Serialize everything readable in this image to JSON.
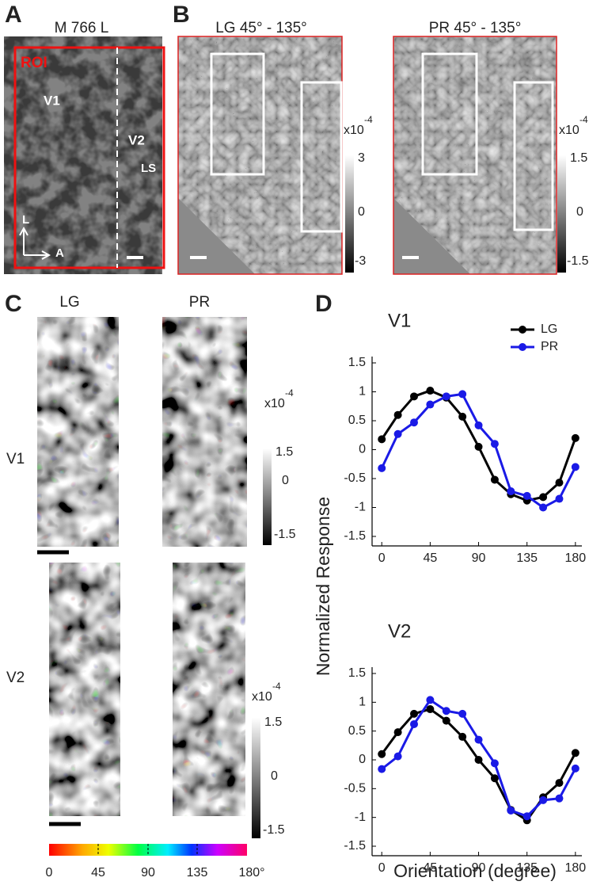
{
  "panel_labels": [
    "A",
    "B",
    "C",
    "D"
  ],
  "panel_a": {
    "title": "M 766 L",
    "roi": "ROI",
    "areas": [
      "V1",
      "V2",
      "LS"
    ],
    "axes": [
      "L",
      "A"
    ]
  },
  "panel_b": {
    "maps": [
      {
        "title": "LG 45° - 135°",
        "scale": "x10",
        "power": "-4",
        "ticks": [
          "3",
          "0",
          "-3"
        ]
      },
      {
        "title": "PR 45° - 135°",
        "scale": "x10",
        "power": "-4",
        "ticks": [
          "1.5",
          "0",
          "-1.5"
        ]
      }
    ]
  },
  "panel_c": {
    "columns": [
      "LG",
      "PR"
    ],
    "rows": [
      "V1",
      "V2"
    ],
    "colorbars": [
      {
        "scale": "x10",
        "power": "-4",
        "ticks": [
          "1.5",
          "0",
          "-1.5"
        ]
      },
      {
        "scale": "x10",
        "power": "-4",
        "ticks": [
          "1.5",
          "0",
          "-1.5"
        ]
      }
    ],
    "orientation_ticks": [
      "0",
      "45",
      "90",
      "135",
      "180°"
    ]
  },
  "chart_data": [
    {
      "type": "line",
      "title": "V1",
      "y_label": "Normalized Response",
      "x": [
        0,
        15,
        30,
        45,
        60,
        75,
        90,
        105,
        120,
        135,
        150,
        165,
        180
      ],
      "series": [
        {
          "name": "LG",
          "color": "#000000",
          "values": [
            0.18,
            0.6,
            0.92,
            1.02,
            0.9,
            0.57,
            0.05,
            -0.52,
            -0.77,
            -0.88,
            -0.82,
            -0.57,
            0.2
          ]
        },
        {
          "name": "PR",
          "color": "#1a1ae6",
          "values": [
            -0.32,
            0.27,
            0.47,
            0.78,
            0.92,
            0.96,
            0.42,
            0.1,
            -0.72,
            -0.8,
            -1.0,
            -0.85,
            -0.3
          ]
        }
      ],
      "xlim": [
        -9,
        186
      ],
      "xticks": [
        0,
        45,
        90,
        135,
        180
      ],
      "ylim": [
        -1.5,
        1.5
      ],
      "yticks": [
        1.5,
        1,
        0.5,
        0,
        -0.5,
        -1,
        -1.5
      ],
      "legend": "upper right"
    },
    {
      "type": "line",
      "title": "V2",
      "x_label": "Orientation (degree)",
      "x": [
        0,
        15,
        30,
        45,
        60,
        75,
        90,
        105,
        120,
        135,
        150,
        165,
        180
      ],
      "series": [
        {
          "name": "LG",
          "color": "#000000",
          "values": [
            0.1,
            0.48,
            0.8,
            0.88,
            0.68,
            0.4,
            0.0,
            -0.32,
            -0.87,
            -1.05,
            -0.65,
            -0.4,
            0.12
          ]
        },
        {
          "name": "PR",
          "color": "#1a1ae6",
          "values": [
            -0.16,
            0.06,
            0.62,
            1.04,
            0.85,
            0.8,
            0.35,
            -0.06,
            -0.88,
            -0.98,
            -0.7,
            -0.67,
            -0.15
          ]
        }
      ],
      "xlim": [
        -9,
        186
      ],
      "xticks": [
        0,
        45,
        90,
        135,
        180
      ],
      "ylim": [
        -1.5,
        1.5
      ],
      "yticks": [
        1.5,
        1,
        0.5,
        0,
        -0.5,
        -1,
        -1.5
      ]
    }
  ]
}
